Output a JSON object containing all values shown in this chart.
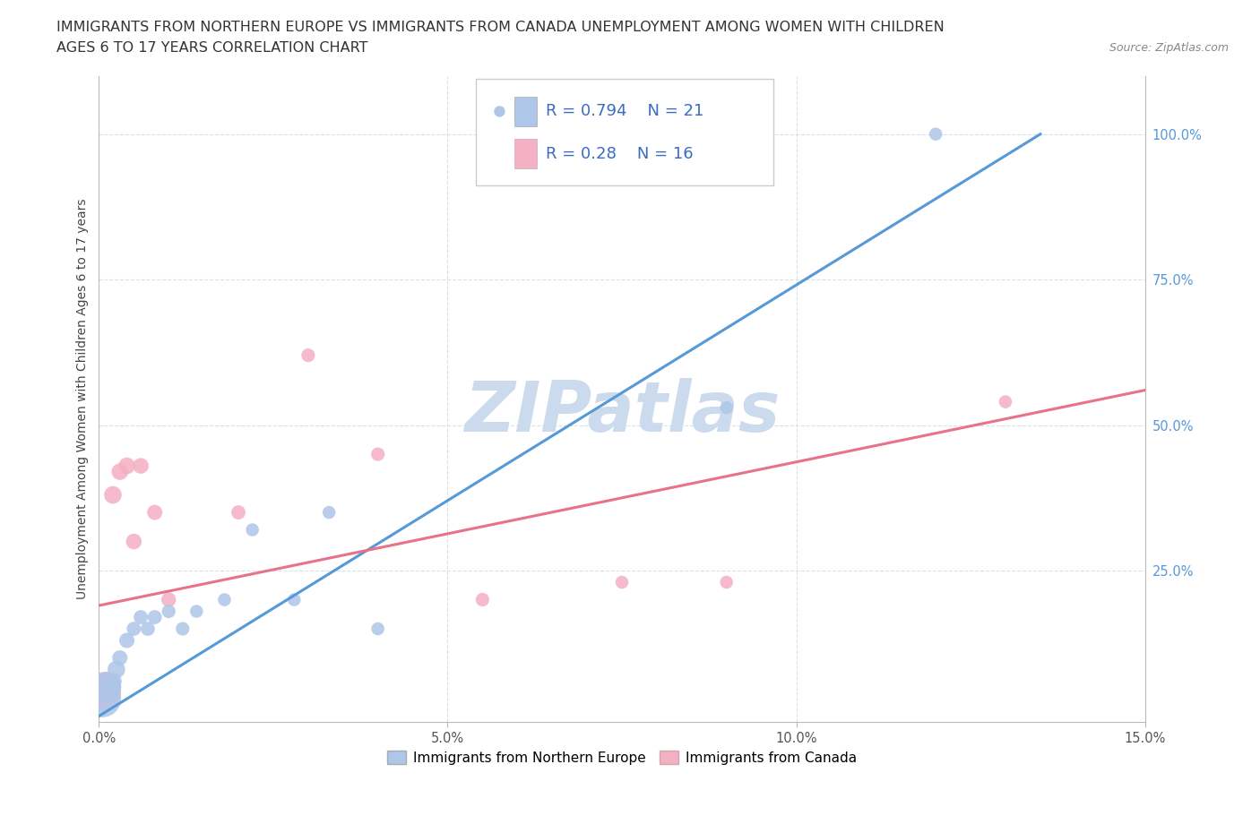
{
  "title_line1": "IMMIGRANTS FROM NORTHERN EUROPE VS IMMIGRANTS FROM CANADA UNEMPLOYMENT AMONG WOMEN WITH CHILDREN",
  "title_line2": "AGES 6 TO 17 YEARS CORRELATION CHART",
  "source": "Source: ZipAtlas.com",
  "ylabel": "Unemployment Among Women with Children Ages 6 to 17 years",
  "xlim": [
    0.0,
    0.15
  ],
  "ylim": [
    -0.01,
    1.1
  ],
  "xticks": [
    0.0,
    0.05,
    0.1,
    0.15
  ],
  "xtick_labels": [
    "0.0%",
    "5.0%",
    "10.0%",
    "15.0%"
  ],
  "ytick_labels_right": [
    "25.0%",
    "50.0%",
    "75.0%",
    "100.0%"
  ],
  "yticks_right": [
    0.25,
    0.5,
    0.75,
    1.0
  ],
  "blue_series": {
    "label": "Immigrants from Northern Europe",
    "R": 0.794,
    "N": 21,
    "color": "#aec6e8",
    "line_color": "#5599d8",
    "x": [
      0.0005,
      0.001,
      0.0015,
      0.002,
      0.0025,
      0.003,
      0.004,
      0.005,
      0.006,
      0.007,
      0.008,
      0.01,
      0.012,
      0.014,
      0.018,
      0.022,
      0.028,
      0.033,
      0.04,
      0.09,
      0.12
    ],
    "y": [
      0.03,
      0.05,
      0.05,
      0.06,
      0.08,
      0.1,
      0.13,
      0.15,
      0.17,
      0.15,
      0.17,
      0.18,
      0.15,
      0.18,
      0.2,
      0.32,
      0.2,
      0.35,
      0.15,
      0.53,
      1.0
    ],
    "sizes": [
      900,
      600,
      300,
      200,
      200,
      150,
      150,
      130,
      130,
      130,
      130,
      120,
      120,
      110,
      110,
      110,
      110,
      110,
      110,
      110,
      110
    ]
  },
  "pink_series": {
    "label": "Immigrants from Canada",
    "R": 0.28,
    "N": 16,
    "color": "#f4b0c5",
    "line_color": "#e8728a",
    "x": [
      0.0005,
      0.001,
      0.002,
      0.003,
      0.004,
      0.005,
      0.006,
      0.008,
      0.01,
      0.02,
      0.03,
      0.04,
      0.055,
      0.075,
      0.09,
      0.13
    ],
    "y": [
      0.04,
      0.05,
      0.38,
      0.42,
      0.43,
      0.3,
      0.43,
      0.35,
      0.2,
      0.35,
      0.62,
      0.45,
      0.2,
      0.23,
      0.23,
      0.54
    ],
    "sizes": [
      900,
      600,
      200,
      180,
      180,
      160,
      160,
      150,
      140,
      130,
      120,
      120,
      120,
      110,
      110,
      110
    ]
  },
  "watermark": "ZIPatlas",
  "watermark_color": "#ccdaed",
  "background_color": "#ffffff",
  "legend_R_color": "#3a6cc0",
  "grid_color": "#d8e0ea",
  "title_fontsize": 11.5,
  "axis_label_fontsize": 10,
  "tick_fontsize": 10.5,
  "legend_fontsize": 13,
  "line_width": 2.2,
  "blue_line_endpoints_x": [
    0.0,
    0.135
  ],
  "blue_line_endpoints_y": [
    0.0,
    1.0
  ],
  "pink_line_endpoints_x": [
    0.0,
    0.15
  ],
  "pink_line_endpoints_y": [
    0.19,
    0.56
  ]
}
